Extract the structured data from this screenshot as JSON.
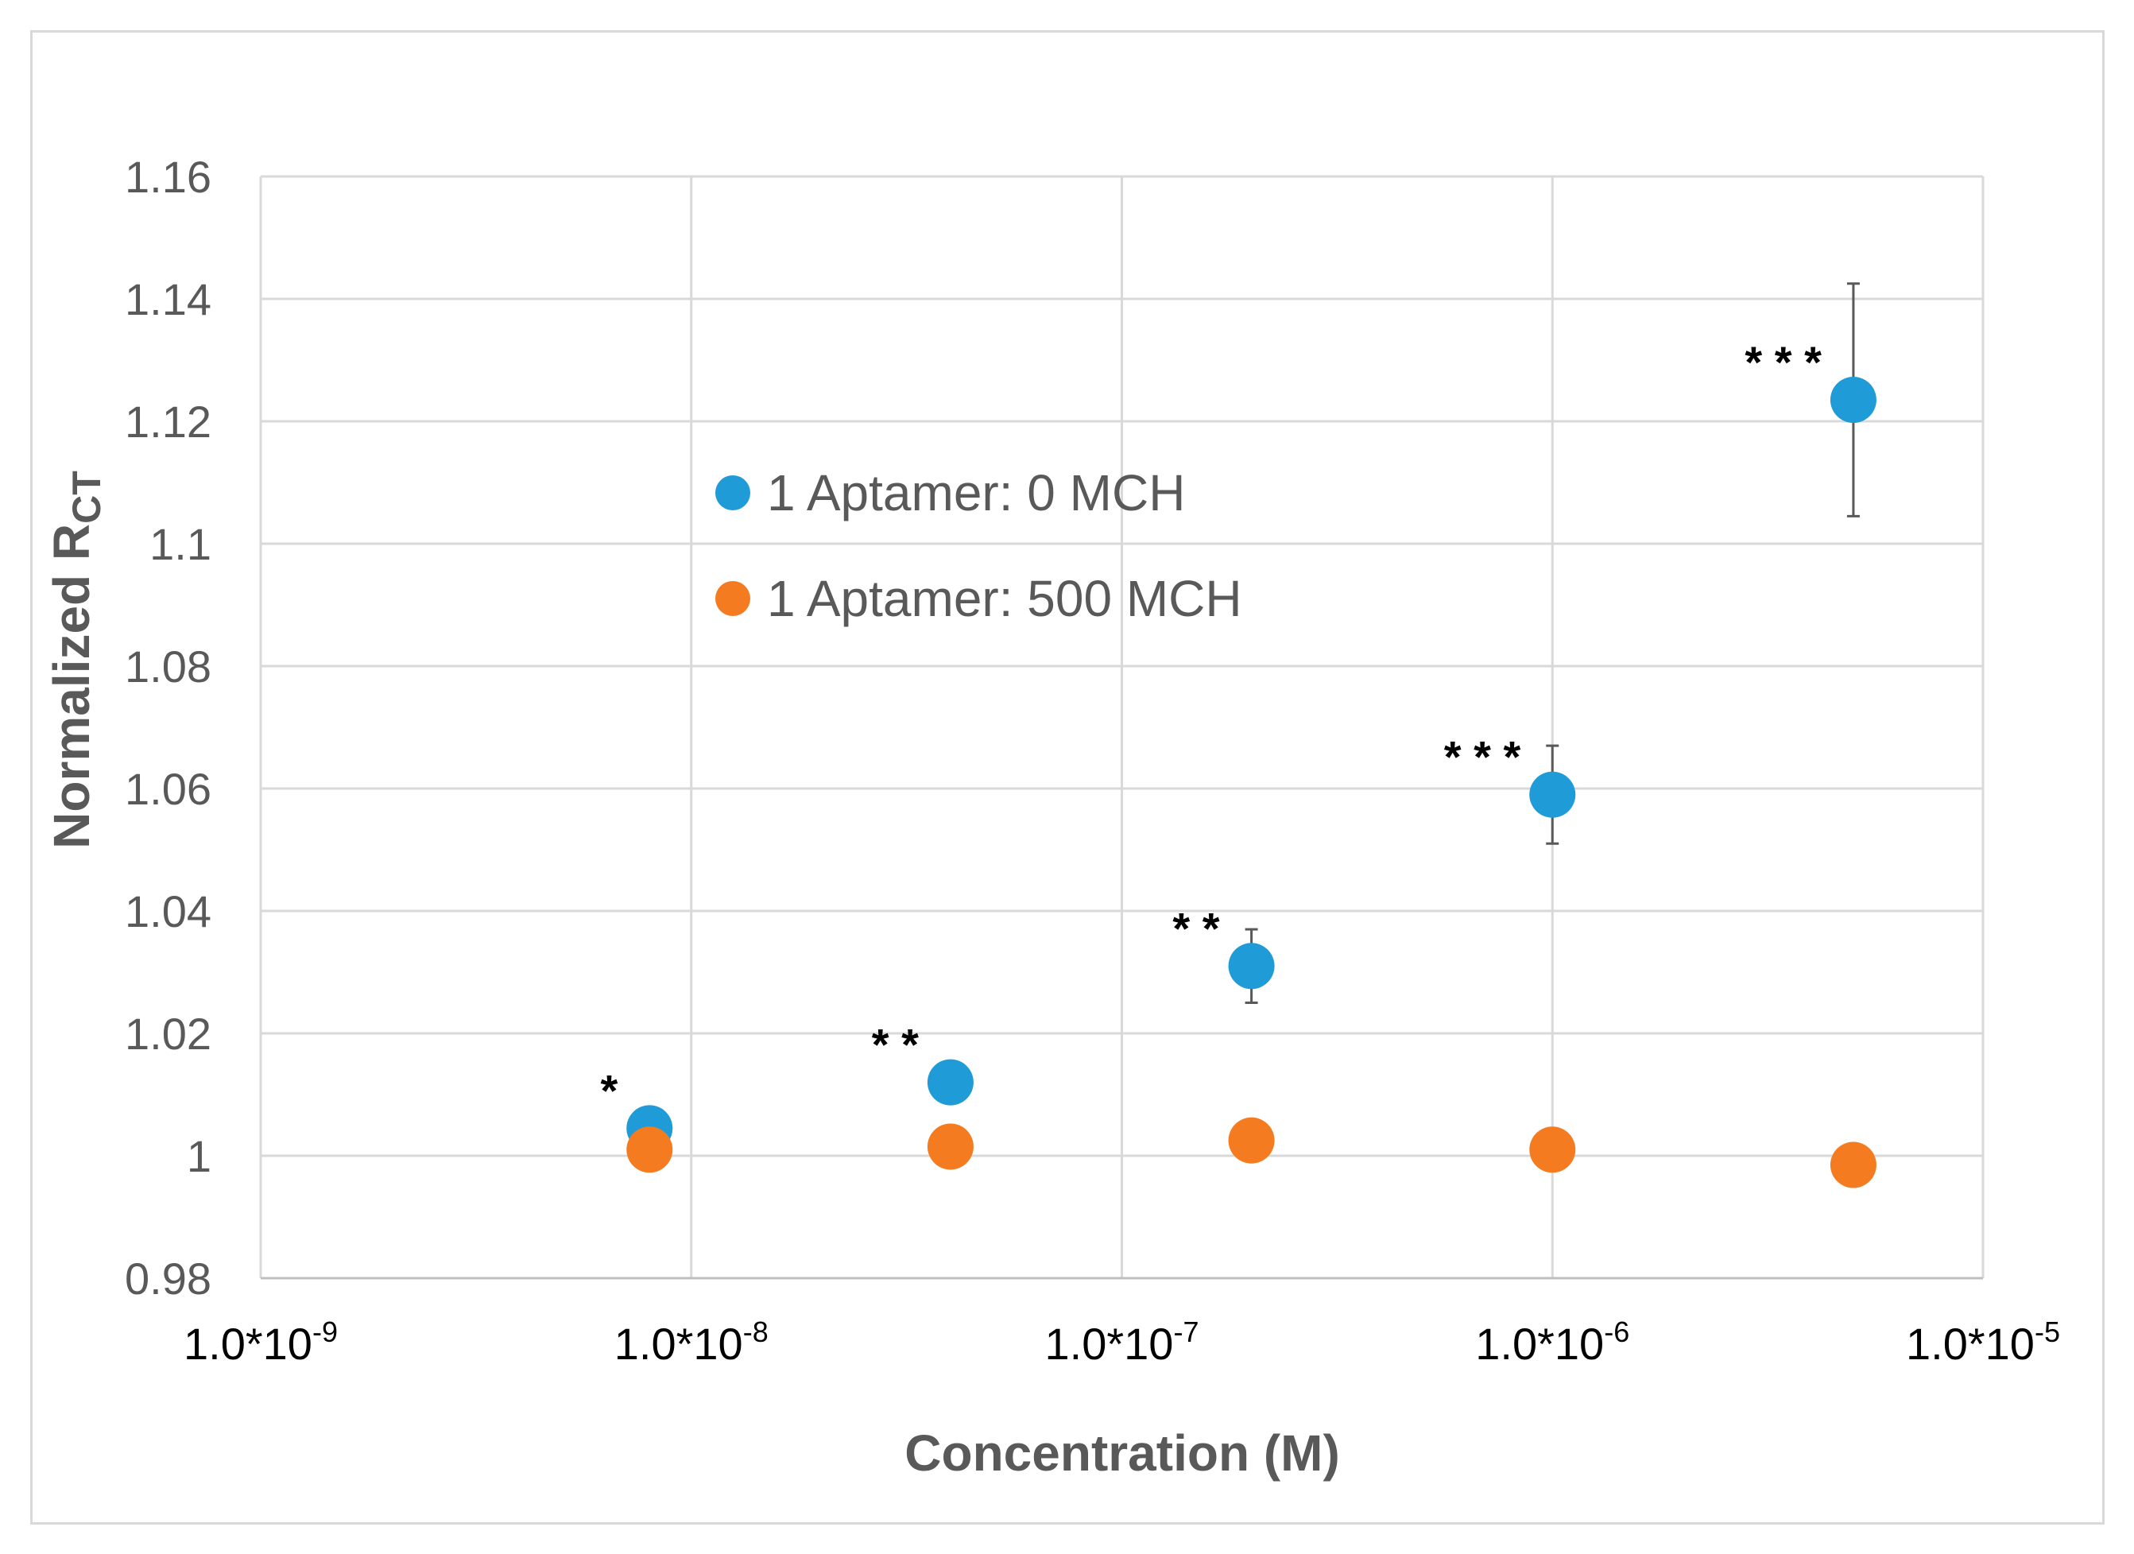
{
  "chart_data": {
    "type": "scatter",
    "title": "",
    "xlabel": "Concentration (M)",
    "ylabel_main": "Normalized R",
    "ylabel_sub": "CT",
    "xscale": "log",
    "xlim": [
      1e-09,
      1e-05
    ],
    "ylim": [
      0.98,
      1.16
    ],
    "grid": true,
    "legend_position": "upper-left-center",
    "y_ticks": [
      {
        "value": 0.98,
        "label": "0.98"
      },
      {
        "value": 1.0,
        "label": "1"
      },
      {
        "value": 1.02,
        "label": "1.02"
      },
      {
        "value": 1.04,
        "label": "1.04"
      },
      {
        "value": 1.06,
        "label": "1.06"
      },
      {
        "value": 1.08,
        "label": "1.08"
      },
      {
        "value": 1.1,
        "label": "1.1"
      },
      {
        "value": 1.12,
        "label": "1.12"
      },
      {
        "value": 1.14,
        "label": "1.14"
      },
      {
        "value": 1.16,
        "label": "1.16"
      }
    ],
    "x_ticks": [
      {
        "value": 1e-09,
        "base": "1.0*10",
        "exp": "-9"
      },
      {
        "value": 1e-08,
        "base": "1.0*10",
        "exp": "-8"
      },
      {
        "value": 1e-07,
        "base": "1.0*10",
        "exp": "-7"
      },
      {
        "value": 1e-06,
        "base": "1.0*10",
        "exp": "-6"
      },
      {
        "value": 1e-05,
        "base": "1.0*10",
        "exp": "-5"
      }
    ],
    "series": [
      {
        "name": "1 Aptamer: 0 MCH",
        "color": "#1F9BD7",
        "points": [
          {
            "x": 8e-09,
            "y": 1.0045,
            "err": 0.002,
            "annotation": "*"
          },
          {
            "x": 4e-08,
            "y": 1.012,
            "err": 0.003,
            "annotation": "**"
          },
          {
            "x": 2e-07,
            "y": 1.031,
            "err": 0.006,
            "annotation": "**"
          },
          {
            "x": 1e-06,
            "y": 1.059,
            "err": 0.008,
            "annotation": "***"
          },
          {
            "x": 5e-06,
            "y": 1.1235,
            "err": 0.019,
            "annotation": "***"
          }
        ]
      },
      {
        "name": "1 Aptamer: 500 MCH",
        "color": "#F47B20",
        "points": [
          {
            "x": 8e-09,
            "y": 1.001
          },
          {
            "x": 4e-08,
            "y": 1.0015
          },
          {
            "x": 2e-07,
            "y": 1.0025
          },
          {
            "x": 1e-06,
            "y": 1.001
          },
          {
            "x": 5e-06,
            "y": 0.9985
          }
        ]
      }
    ]
  }
}
